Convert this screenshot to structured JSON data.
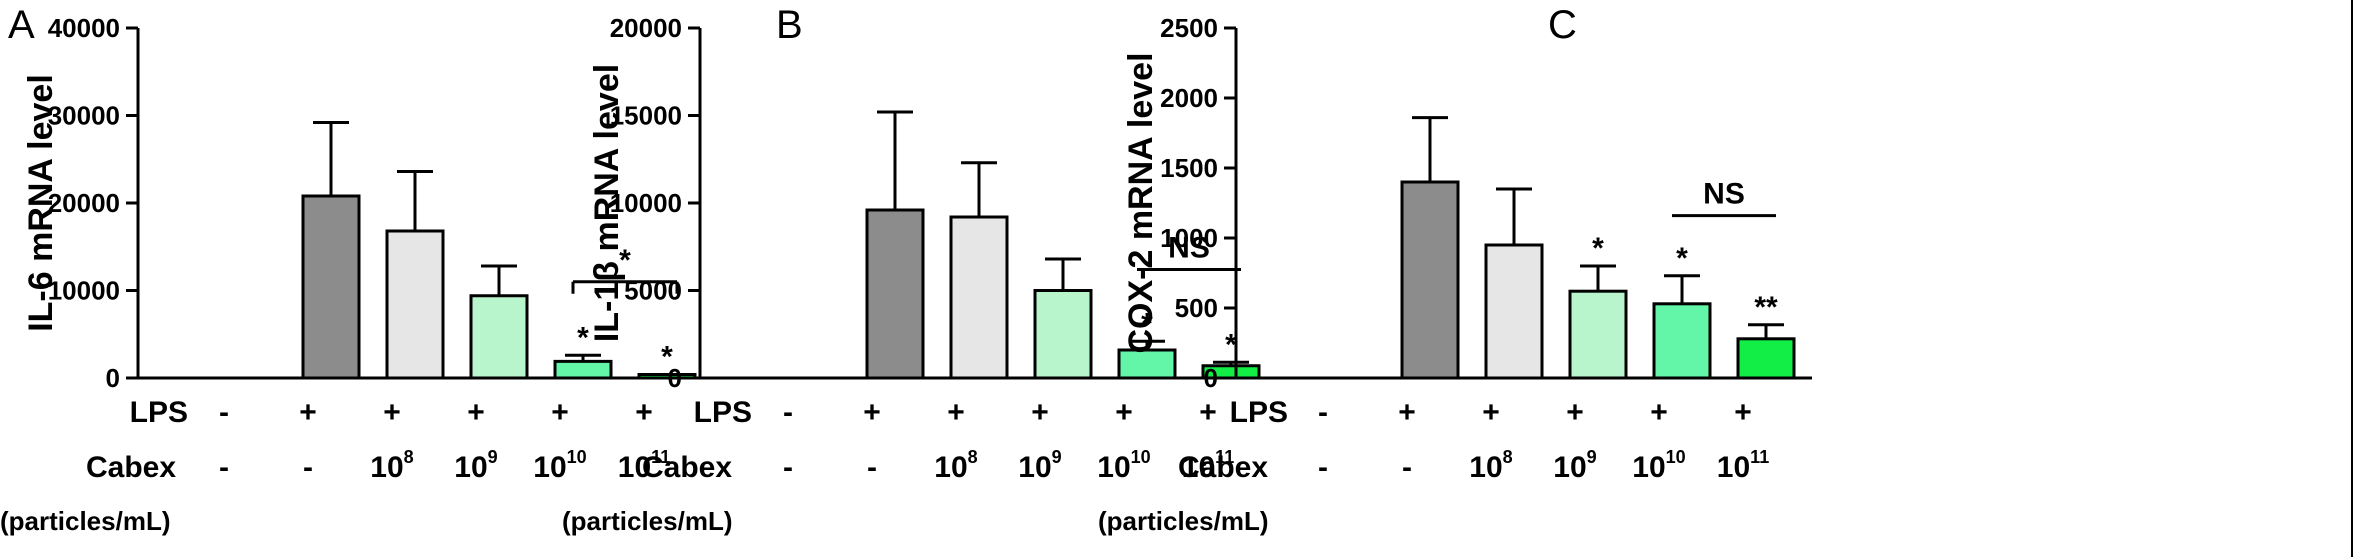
{
  "chart_data": [
    {
      "type": "bar",
      "panel": "A",
      "ylabel": "IL-6 mRNA level",
      "ylim": [
        0,
        40000
      ],
      "yticks": [
        "0",
        "10000",
        "20000",
        "30000",
        "40000"
      ],
      "values": [
        0,
        20800,
        16800,
        9400,
        1900,
        400
      ],
      "errors": [
        0,
        8400,
        6800,
        3400,
        700,
        0
      ],
      "colors": [
        "#ffffff",
        "#8c8c8c",
        "#e6e6e6",
        "#b8f5cc",
        "#63f5a8",
        "#12ee45"
      ],
      "significance": [
        "",
        "",
        "",
        "",
        "*",
        "*"
      ],
      "bracket": {
        "from": 4,
        "to": 5,
        "label": "*",
        "y": 11000,
        "hooks": true
      },
      "rows": [
        {
          "label": "LPS",
          "values": [
            "-",
            "+",
            "+",
            "+",
            "+",
            "+"
          ]
        },
        {
          "label": "Cabex",
          "sub": "(particles/mL)",
          "values": [
            "-",
            "-",
            "10",
            "10",
            "10",
            "10"
          ],
          "exponents": [
            "",
            "",
            "8",
            "9",
            "10",
            "11"
          ]
        }
      ]
    },
    {
      "type": "bar",
      "panel": "B",
      "ylabel": "IL-1β mRNA level",
      "ylim": [
        0,
        20000
      ],
      "yticks": [
        "0",
        "5000",
        "10000",
        "15000",
        "20000"
      ],
      "values": [
        0,
        9600,
        9200,
        5000,
        1600,
        700
      ],
      "errors": [
        0,
        5600,
        3100,
        1800,
        500,
        200
      ],
      "colors": [
        "#ffffff",
        "#8c8c8c",
        "#e6e6e6",
        "#b8f5cc",
        "#63f5a8",
        "#12ee45"
      ],
      "significance": [
        "",
        "",
        "",
        "",
        "*",
        "*"
      ],
      "bracket": {
        "from": 4,
        "to": 5,
        "label": "NS",
        "y": 6200,
        "hooks": false
      },
      "rows": [
        {
          "label": "LPS",
          "values": [
            "-",
            "+",
            "+",
            "+",
            "+",
            "+"
          ]
        },
        {
          "label": "Cabex",
          "sub": "(particles/mL)",
          "values": [
            "-",
            "-",
            "10",
            "10",
            "10",
            "10"
          ],
          "exponents": [
            "",
            "",
            "8",
            "9",
            "10",
            "11"
          ]
        }
      ]
    },
    {
      "type": "bar",
      "panel": "C",
      "ylabel": "COX-2 mRNA level",
      "ylim": [
        0,
        2500
      ],
      "yticks": [
        "0",
        "500",
        "1000",
        "1500",
        "2000",
        "2500"
      ],
      "values": [
        0,
        1400,
        950,
        620,
        530,
        280
      ],
      "errors": [
        0,
        460,
        400,
        180,
        200,
        100
      ],
      "colors": [
        "#ffffff",
        "#8c8c8c",
        "#e6e6e6",
        "#b8f5cc",
        "#63f5a8",
        "#12ee45"
      ],
      "significance": [
        "",
        "",
        "",
        "*",
        "*",
        "**"
      ],
      "bracket": {
        "from": 4,
        "to": 5,
        "label": "NS",
        "y": 1160,
        "hooks": false
      },
      "rows": [
        {
          "label": "LPS",
          "values": [
            "-",
            "+",
            "+",
            "+",
            "+",
            "+"
          ]
        },
        {
          "label": "Cabex",
          "sub": "(particles/mL)",
          "values": [
            "-",
            "-",
            "10",
            "10",
            "10",
            "10"
          ],
          "exponents": [
            "",
            "",
            "8",
            "9",
            "10",
            "11"
          ]
        }
      ]
    }
  ]
}
